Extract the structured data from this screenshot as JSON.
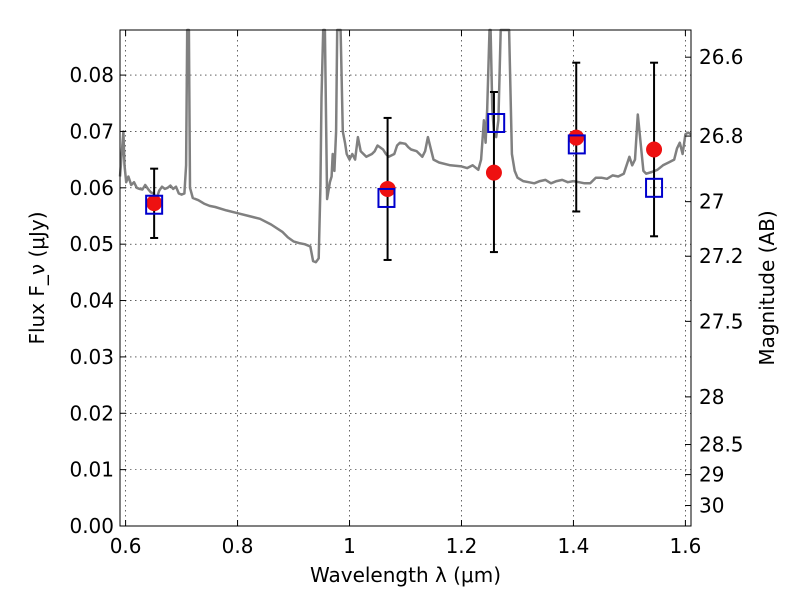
{
  "chart_data": {
    "type": "line",
    "xlabel": "Wavelength λ (μm)",
    "ylabel": "Flux F_ν (μJy)",
    "y2label": "Magnitude (AB)",
    "xlim": [
      0.59,
      1.61
    ],
    "ylim": [
      0.0,
      0.088
    ],
    "grid": true,
    "x_ticks": [
      0.6,
      0.8,
      1.0,
      1.2,
      1.4,
      1.6
    ],
    "x_tick_labels": [
      "0.6",
      "0.8",
      "1",
      "1.2",
      "1.4",
      "1.6"
    ],
    "y_ticks": [
      0.0,
      0.01,
      0.02,
      0.03,
      0.04,
      0.05,
      0.06,
      0.07,
      0.08
    ],
    "y_tick_labels": [
      "0.00",
      "0.01",
      "0.02",
      "0.03",
      "0.04",
      "0.05",
      "0.06",
      "0.07",
      "0.08"
    ],
    "y2_ticks": [
      26.6,
      26.8,
      27,
      27.2,
      27.5,
      28,
      28.5,
      29,
      30
    ],
    "y2_tick_labels": [
      "26.6",
      "26.8",
      "27",
      "27.2",
      "27.5",
      "28",
      "28.5",
      "29",
      "30"
    ],
    "colors": {
      "spectrum": "#808080",
      "observed": "#ee1111",
      "model": "#0000cc",
      "errorbar": "#000000"
    },
    "series": [
      {
        "kind": "line",
        "points": [
          [
            0.59,
            0.062
          ],
          [
            0.593,
            0.066
          ],
          [
            0.596,
            0.07
          ],
          [
            0.598,
            0.064
          ],
          [
            0.601,
            0.061
          ],
          [
            0.605,
            0.062
          ],
          [
            0.61,
            0.0605
          ],
          [
            0.615,
            0.061
          ],
          [
            0.62,
            0.06
          ],
          [
            0.625,
            0.0598
          ],
          [
            0.63,
            0.0597
          ],
          [
            0.635,
            0.0605
          ],
          [
            0.64,
            0.0598
          ],
          [
            0.645,
            0.0592
          ],
          [
            0.65,
            0.059
          ],
          [
            0.655,
            0.058
          ],
          [
            0.66,
            0.0595
          ],
          [
            0.665,
            0.0602
          ],
          [
            0.67,
            0.0598
          ],
          [
            0.675,
            0.06
          ],
          [
            0.68,
            0.0604
          ],
          [
            0.685,
            0.0598
          ],
          [
            0.69,
            0.0602
          ],
          [
            0.695,
            0.059
          ],
          [
            0.7,
            0.0588
          ],
          [
            0.705,
            0.059
          ],
          [
            0.708,
            0.064
          ],
          [
            0.71,
            0.088
          ],
          [
            0.713,
            0.088
          ],
          [
            0.715,
            0.06
          ],
          [
            0.72,
            0.0582
          ],
          [
            0.73,
            0.0578
          ],
          [
            0.74,
            0.0572
          ],
          [
            0.75,
            0.0568
          ],
          [
            0.76,
            0.0566
          ],
          [
            0.78,
            0.056
          ],
          [
            0.8,
            0.0555
          ],
          [
            0.82,
            0.055
          ],
          [
            0.84,
            0.0545
          ],
          [
            0.86,
            0.0535
          ],
          [
            0.88,
            0.0522
          ],
          [
            0.89,
            0.0512
          ],
          [
            0.9,
            0.0505
          ],
          [
            0.91,
            0.0502
          ],
          [
            0.92,
            0.05
          ],
          [
            0.925,
            0.0498
          ],
          [
            0.93,
            0.0496
          ],
          [
            0.935,
            0.047
          ],
          [
            0.94,
            0.0468
          ],
          [
            0.945,
            0.0475
          ],
          [
            0.948,
            0.06
          ],
          [
            0.95,
            0.076
          ],
          [
            0.953,
            0.088
          ],
          [
            0.956,
            0.088
          ],
          [
            0.96,
            0.058
          ],
          [
            0.965,
            0.061
          ],
          [
            0.968,
            0.062
          ],
          [
            0.97,
            0.066
          ],
          [
            0.973,
            0.063
          ],
          [
            0.976,
            0.07
          ],
          [
            0.978,
            0.088
          ],
          [
            0.984,
            0.088
          ],
          [
            0.988,
            0.07
          ],
          [
            0.992,
            0.068
          ],
          [
            0.995,
            0.066
          ],
          [
            1.0,
            0.065
          ],
          [
            1.005,
            0.066
          ],
          [
            1.01,
            0.065
          ],
          [
            1.015,
            0.069
          ],
          [
            1.02,
            0.0665
          ],
          [
            1.025,
            0.066
          ],
          [
            1.03,
            0.0655
          ],
          [
            1.04,
            0.066
          ],
          [
            1.045,
            0.0665
          ],
          [
            1.05,
            0.0675
          ],
          [
            1.06,
            0.0668
          ],
          [
            1.065,
            0.066
          ],
          [
            1.07,
            0.0655
          ],
          [
            1.08,
            0.066
          ],
          [
            1.085,
            0.0675
          ],
          [
            1.09,
            0.068
          ],
          [
            1.1,
            0.0678
          ],
          [
            1.105,
            0.0672
          ],
          [
            1.11,
            0.0668
          ],
          [
            1.12,
            0.0665
          ],
          [
            1.13,
            0.0655
          ],
          [
            1.135,
            0.0665
          ],
          [
            1.14,
            0.069
          ],
          [
            1.145,
            0.067
          ],
          [
            1.15,
            0.065
          ],
          [
            1.16,
            0.0645
          ],
          [
            1.18,
            0.064
          ],
          [
            1.2,
            0.0638
          ],
          [
            1.21,
            0.0635
          ],
          [
            1.22,
            0.064
          ],
          [
            1.23,
            0.0632
          ],
          [
            1.235,
            0.065
          ],
          [
            1.24,
            0.072
          ],
          [
            1.243,
            0.068
          ],
          [
            1.246,
            0.074
          ],
          [
            1.25,
            0.088
          ],
          [
            1.252,
            0.088
          ],
          [
            1.255,
            0.074
          ],
          [
            1.258,
            0.07
          ],
          [
            1.262,
            0.069
          ],
          [
            1.266,
            0.072
          ],
          [
            1.27,
            0.088
          ],
          [
            1.285,
            0.088
          ],
          [
            1.29,
            0.066
          ],
          [
            1.295,
            0.063
          ],
          [
            1.3,
            0.0618
          ],
          [
            1.31,
            0.0612
          ],
          [
            1.32,
            0.061
          ],
          [
            1.33,
            0.0608
          ],
          [
            1.34,
            0.0612
          ],
          [
            1.35,
            0.0614
          ],
          [
            1.36,
            0.0608
          ],
          [
            1.37,
            0.0612
          ],
          [
            1.38,
            0.0614
          ],
          [
            1.39,
            0.061
          ],
          [
            1.4,
            0.0612
          ],
          [
            1.41,
            0.061
          ],
          [
            1.42,
            0.0608
          ],
          [
            1.43,
            0.0608
          ],
          [
            1.44,
            0.0618
          ],
          [
            1.45,
            0.0618
          ],
          [
            1.46,
            0.0616
          ],
          [
            1.47,
            0.0622
          ],
          [
            1.48,
            0.062
          ],
          [
            1.49,
            0.0625
          ],
          [
            1.5,
            0.0655
          ],
          [
            1.505,
            0.064
          ],
          [
            1.51,
            0.065
          ],
          [
            1.515,
            0.073
          ],
          [
            1.52,
            0.068
          ],
          [
            1.525,
            0.063
          ],
          [
            1.53,
            0.0625
          ],
          [
            1.54,
            0.0628
          ],
          [
            1.55,
            0.0632
          ],
          [
            1.56,
            0.064
          ],
          [
            1.57,
            0.0645
          ],
          [
            1.58,
            0.065
          ],
          [
            1.585,
            0.067
          ],
          [
            1.59,
            0.068
          ],
          [
            1.595,
            0.066
          ],
          [
            1.6,
            0.0695
          ],
          [
            1.605,
            0.0698
          ],
          [
            1.61,
            0.0695
          ]
        ]
      },
      {
        "kind": "errorbar",
        "points": [
          {
            "x": 0.651,
            "y": 0.0573,
            "ylo": 0.0511,
            "yhi": 0.0634
          },
          {
            "x": 1.068,
            "y": 0.0598,
            "ylo": 0.0472,
            "yhi": 0.0724
          },
          {
            "x": 1.258,
            "y": 0.0627,
            "ylo": 0.0486,
            "yhi": 0.077
          },
          {
            "x": 1.405,
            "y": 0.0689,
            "ylo": 0.0558,
            "yhi": 0.0822
          },
          {
            "x": 1.544,
            "y": 0.0668,
            "ylo": 0.0514,
            "yhi": 0.0822
          }
        ]
      },
      {
        "kind": "scatter",
        "marker": "circle",
        "points": [
          {
            "x": 0.651,
            "y": 0.0573
          },
          {
            "x": 1.068,
            "y": 0.0598
          },
          {
            "x": 1.258,
            "y": 0.0627
          },
          {
            "x": 1.405,
            "y": 0.0689
          },
          {
            "x": 1.544,
            "y": 0.0668
          }
        ]
      },
      {
        "kind": "scatter",
        "marker": "open-square",
        "points": [
          {
            "x": 0.651,
            "y": 0.057
          },
          {
            "x": 1.066,
            "y": 0.0582
          },
          {
            "x": 1.262,
            "y": 0.0715
          },
          {
            "x": 1.406,
            "y": 0.0677
          },
          {
            "x": 1.544,
            "y": 0.06
          }
        ]
      }
    ]
  }
}
